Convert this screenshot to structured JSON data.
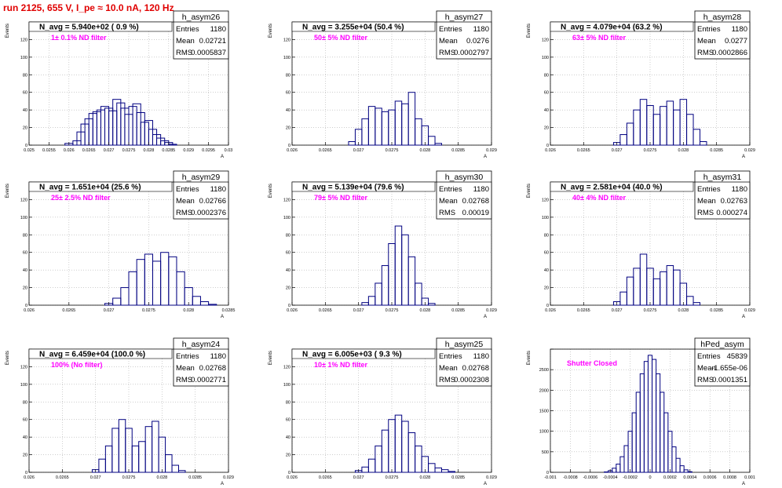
{
  "page": {
    "title": "run 2125,   655 V, I_pe ≈ 10.0 nA, 120 Hz"
  },
  "colors": {
    "histogram": "#000080",
    "annotation": "#ff00ff",
    "title": "#e00000",
    "frame": "#000000",
    "grid": "#b0b0b0"
  },
  "chart_data": [
    {
      "type": "bar",
      "name": "h_asym26",
      "header": "N_avg = 5.940e+02 ( 0.9 %)",
      "note": "1± 0.1% ND filter",
      "stats": [
        [
          "Entries",
          "1180"
        ],
        [
          "Mean",
          "0.02721"
        ],
        [
          "RMS",
          "0.0005837"
        ]
      ],
      "ylabel": "Events",
      "xlabel": "A",
      "xlim": [
        0.025,
        0.03
      ],
      "ylim": [
        0,
        140
      ],
      "xticks": [
        0.025,
        0.0255,
        0.026,
        0.0265,
        0.027,
        0.0275,
        0.028,
        0.0285,
        0.029,
        0.0295,
        0.03
      ],
      "xticklabels": [
        "0.025",
        "0.0255",
        "0.026",
        "0.0265",
        "0.027",
        "0.0275",
        "0.028",
        "0.0285",
        "0.029",
        "0.0295",
        "0.03"
      ],
      "yticks": [
        0,
        20,
        40,
        60,
        80,
        100,
        120,
        140
      ],
      "yticklabels": [
        "0",
        "20",
        "40",
        "60",
        "80",
        "100",
        "120",
        ""
      ],
      "x": [
        0.026,
        0.0262,
        0.0263,
        0.0264,
        0.0265,
        0.0266,
        0.0267,
        0.0268,
        0.0269,
        0.027,
        0.0271,
        0.0272,
        0.0273,
        0.0274,
        0.0275,
        0.0276,
        0.0277,
        0.0278,
        0.0279,
        0.028,
        0.0281,
        0.0282,
        0.0283,
        0.0284,
        0.0285,
        0.0286
      ],
      "values": [
        2,
        5,
        15,
        24,
        30,
        36,
        38,
        40,
        44,
        42,
        39,
        52,
        48,
        42,
        35,
        44,
        47,
        37,
        26,
        28,
        18,
        12,
        8,
        5,
        3,
        1
      ]
    },
    {
      "type": "bar",
      "name": "h_asym27",
      "header": "N_avg = 3.255e+04 (50.4 %)",
      "note": "50± 5% ND filter",
      "stats": [
        [
          "Entries",
          "1180"
        ],
        [
          "Mean",
          "0.0276"
        ],
        [
          "RMS",
          "0.0002797"
        ]
      ],
      "ylabel": "Events",
      "xlabel": "A",
      "xlim": [
        0.026,
        0.029
      ],
      "ylim": [
        0,
        140
      ],
      "xticks": [
        0.026,
        0.0265,
        0.027,
        0.0275,
        0.028,
        0.0285,
        0.029
      ],
      "xticklabels": [
        "0.026",
        "0.0265",
        "0.027",
        "0.0275",
        "0.028",
        "0.0285",
        "0.029"
      ],
      "yticks": [
        0,
        20,
        40,
        60,
        80,
        100,
        120,
        140
      ],
      "yticklabels": [
        "0",
        "20",
        "40",
        "60",
        "80",
        "100",
        "120",
        ""
      ],
      "x": [
        0.0269,
        0.027,
        0.0271,
        0.0272,
        0.0273,
        0.0274,
        0.0275,
        0.0276,
        0.0277,
        0.0278,
        0.0279,
        0.028,
        0.0281,
        0.0282
      ],
      "values": [
        4,
        18,
        30,
        44,
        42,
        38,
        40,
        50,
        47,
        60,
        30,
        22,
        10,
        2
      ]
    },
    {
      "type": "bar",
      "name": "h_asym28",
      "header": "N_avg = 4.079e+04 (63.2 %)",
      "note": "63± 5% ND filter",
      "stats": [
        [
          "Entries",
          "1180"
        ],
        [
          "Mean",
          "0.0277"
        ],
        [
          "RMS",
          "0.0002866"
        ]
      ],
      "ylabel": "Events",
      "xlabel": "A",
      "xlim": [
        0.026,
        0.029
      ],
      "ylim": [
        0,
        140
      ],
      "xticks": [
        0.026,
        0.0265,
        0.027,
        0.0275,
        0.028,
        0.0285,
        0.029
      ],
      "xticklabels": [
        "0.026",
        "0.0265",
        "0.027",
        "0.0275",
        "0.028",
        "0.0285",
        "0.029"
      ],
      "yticks": [
        0,
        20,
        40,
        60,
        80,
        100,
        120,
        140
      ],
      "yticklabels": [
        "0",
        "20",
        "40",
        "60",
        "80",
        "100",
        "120",
        ""
      ],
      "x": [
        0.027,
        0.0271,
        0.0272,
        0.0273,
        0.0274,
        0.0275,
        0.0276,
        0.0277,
        0.0278,
        0.0279,
        0.028,
        0.0281,
        0.0282,
        0.0283
      ],
      "values": [
        3,
        12,
        25,
        40,
        52,
        45,
        35,
        44,
        50,
        40,
        52,
        35,
        18,
        4
      ]
    },
    {
      "type": "bar",
      "name": "h_asym29",
      "header": "N_avg = 1.651e+04 (25.6 %)",
      "note": "25± 2.5% ND filter",
      "stats": [
        [
          "Entries",
          "1180"
        ],
        [
          "Mean",
          "0.02766"
        ],
        [
          "RMS",
          "0.0002376"
        ]
      ],
      "ylabel": "Events",
      "xlabel": "A",
      "xlim": [
        0.026,
        0.0285
      ],
      "ylim": [
        0,
        140
      ],
      "xticks": [
        0.026,
        0.0265,
        0.027,
        0.0275,
        0.028,
        0.0285
      ],
      "xticklabels": [
        "0.026",
        "0.0265",
        "0.027",
        "0.0275",
        "0.028",
        "0.0285"
      ],
      "yticks": [
        0,
        20,
        40,
        60,
        80,
        100,
        120,
        140
      ],
      "yticklabels": [
        "0",
        "20",
        "40",
        "60",
        "80",
        "100",
        "120",
        ""
      ],
      "x": [
        0.027,
        0.0271,
        0.0272,
        0.0273,
        0.0274,
        0.0275,
        0.0276,
        0.0277,
        0.0278,
        0.0279,
        0.028,
        0.0281,
        0.0282,
        0.0283
      ],
      "values": [
        2,
        8,
        20,
        38,
        52,
        58,
        50,
        60,
        55,
        38,
        20,
        10,
        4,
        1
      ]
    },
    {
      "type": "bar",
      "name": "h_asym30",
      "header": "N_avg = 5.139e+04 (79.6 %)",
      "note": "79± 5% ND filter",
      "stats": [
        [
          "Entries",
          "1180"
        ],
        [
          "Mean",
          "0.02768"
        ],
        [
          "RMS",
          "0.00019"
        ]
      ],
      "ylabel": "Events",
      "xlabel": "A",
      "xlim": [
        0.026,
        0.029
      ],
      "ylim": [
        0,
        140
      ],
      "xticks": [
        0.026,
        0.0265,
        0.027,
        0.0275,
        0.028,
        0.0285,
        0.029
      ],
      "xticklabels": [
        "0.026",
        "0.0265",
        "0.027",
        "0.0275",
        "0.028",
        "0.0285",
        "0.029"
      ],
      "yticks": [
        0,
        20,
        40,
        60,
        80,
        100,
        120,
        140
      ],
      "yticklabels": [
        "0",
        "20",
        "40",
        "60",
        "80",
        "100",
        "120",
        ""
      ],
      "x": [
        0.0271,
        0.0272,
        0.0273,
        0.0274,
        0.0275,
        0.0276,
        0.0277,
        0.0278,
        0.0279,
        0.028,
        0.0281
      ],
      "values": [
        3,
        10,
        25,
        45,
        70,
        90,
        80,
        55,
        25,
        8,
        2
      ]
    },
    {
      "type": "bar",
      "name": "h_asym31",
      "header": "N_avg = 2.581e+04 (40.0 %)",
      "note": "40± 4% ND filter",
      "stats": [
        [
          "Entries",
          "1180"
        ],
        [
          "Mean",
          "0.02763"
        ],
        [
          "RMS",
          "0.000274"
        ]
      ],
      "ylabel": "Events",
      "xlabel": "A",
      "xlim": [
        0.026,
        0.029
      ],
      "ylim": [
        0,
        140
      ],
      "xticks": [
        0.026,
        0.0265,
        0.027,
        0.0275,
        0.028,
        0.0285,
        0.029
      ],
      "xticklabels": [
        "0.026",
        "0.0265",
        "0.027",
        "0.0275",
        "0.028",
        "0.0285",
        "0.029"
      ],
      "yticks": [
        0,
        20,
        40,
        60,
        80,
        100,
        120,
        140
      ],
      "yticklabels": [
        "0",
        "20",
        "40",
        "60",
        "80",
        "100",
        "120",
        ""
      ],
      "x": [
        0.027,
        0.0271,
        0.0272,
        0.0273,
        0.0274,
        0.0275,
        0.0276,
        0.0277,
        0.0278,
        0.0279,
        0.028,
        0.0281,
        0.0282
      ],
      "values": [
        4,
        15,
        32,
        42,
        58,
        42,
        30,
        38,
        45,
        40,
        25,
        10,
        3
      ]
    },
    {
      "type": "bar",
      "name": "h_asym24",
      "header": "N_avg = 6.459e+04 (100.0 %)",
      "note": "100% (No filter)",
      "stats": [
        [
          "Entries",
          "1180"
        ],
        [
          "Mean",
          "0.02768"
        ],
        [
          "RMS",
          "0.0002771"
        ]
      ],
      "ylabel": "Events",
      "xlabel": "A",
      "xlim": [
        0.026,
        0.029
      ],
      "ylim": [
        0,
        140
      ],
      "xticks": [
        0.026,
        0.0265,
        0.027,
        0.0275,
        0.028,
        0.0285,
        0.029
      ],
      "xticklabels": [
        "0.026",
        "0.0265",
        "0.027",
        "0.0275",
        "0.028",
        "0.0285",
        "0.029"
      ],
      "yticks": [
        0,
        20,
        40,
        60,
        80,
        100,
        120,
        140
      ],
      "yticklabels": [
        "0",
        "20",
        "40",
        "60",
        "80",
        "100",
        "120",
        ""
      ],
      "x": [
        0.027,
        0.0271,
        0.0272,
        0.0273,
        0.0274,
        0.0275,
        0.0276,
        0.0277,
        0.0278,
        0.0279,
        0.028,
        0.0281,
        0.0282,
        0.0283
      ],
      "values": [
        3,
        15,
        30,
        50,
        60,
        50,
        30,
        35,
        52,
        58,
        40,
        20,
        8,
        2
      ]
    },
    {
      "type": "bar",
      "name": "h_asym25",
      "header": "N_avg = 6.005e+03 ( 9.3 %)",
      "note": "10± 1% ND filter",
      "stats": [
        [
          "Entries",
          "1180"
        ],
        [
          "Mean",
          "0.02768"
        ],
        [
          "RMS",
          "0.0002308"
        ]
      ],
      "ylabel": "Events",
      "xlabel": "A",
      "xlim": [
        0.026,
        0.029
      ],
      "ylim": [
        0,
        140
      ],
      "xticks": [
        0.026,
        0.0265,
        0.027,
        0.0275,
        0.028,
        0.0285,
        0.029
      ],
      "xticklabels": [
        "0.026",
        "0.0265",
        "0.027",
        "0.0275",
        "0.028",
        "0.0285",
        "0.029"
      ],
      "yticks": [
        0,
        20,
        40,
        60,
        80,
        100,
        120,
        140
      ],
      "yticklabels": [
        "0",
        "20",
        "40",
        "60",
        "80",
        "100",
        "120",
        ""
      ],
      "x": [
        0.027,
        0.0271,
        0.0272,
        0.0273,
        0.0274,
        0.0275,
        0.0276,
        0.0277,
        0.0278,
        0.0279,
        0.028,
        0.0281,
        0.0282,
        0.0283,
        0.0284
      ],
      "values": [
        2,
        6,
        15,
        30,
        48,
        60,
        65,
        58,
        45,
        30,
        18,
        10,
        5,
        3,
        1
      ]
    },
    {
      "type": "bar",
      "name": "hPed_asym",
      "header": "",
      "note": "Shutter Closed",
      "stats": [
        [
          "Entries",
          "45839"
        ],
        [
          "Mean",
          "-1.655e-06"
        ],
        [
          "RMS",
          "0.0001351"
        ]
      ],
      "ylabel": "Events",
      "xlabel": "A",
      "xlim": [
        -0.001,
        0.001
      ],
      "ylim": [
        0,
        3000
      ],
      "xticks": [
        -0.001,
        -0.0008,
        -0.0006,
        -0.0004,
        -0.0002,
        0,
        0.0002,
        0.0004,
        0.0006,
        0.0008,
        0.001
      ],
      "xticklabels": [
        "-0.001",
        "-0.0008",
        "-0.0006",
        "-0.0004",
        "-0.0002",
        "0",
        "0.0002",
        "0.0004",
        "0.0006",
        "0.0008",
        "0.001"
      ],
      "yticks": [
        0,
        500,
        1000,
        1500,
        2000,
        2500,
        3000
      ],
      "yticklabels": [
        "0",
        "500",
        "1000",
        "1500",
        "2000",
        "2500",
        ""
      ],
      "x": [
        -0.00044,
        -0.0004,
        -0.00036,
        -0.00032,
        -0.00028,
        -0.00024,
        -0.0002,
        -0.00016,
        -0.00012,
        -8e-05,
        -4e-05,
        0,
        4e-05,
        8e-05,
        0.00012,
        0.00016,
        0.0002,
        0.00024,
        0.00028,
        0.00032,
        0.00036,
        0.0004
      ],
      "values": [
        10,
        40,
        100,
        200,
        380,
        650,
        1000,
        1450,
        1950,
        2400,
        2700,
        2850,
        2750,
        2400,
        1950,
        1450,
        1000,
        620,
        340,
        160,
        60,
        15
      ]
    }
  ]
}
